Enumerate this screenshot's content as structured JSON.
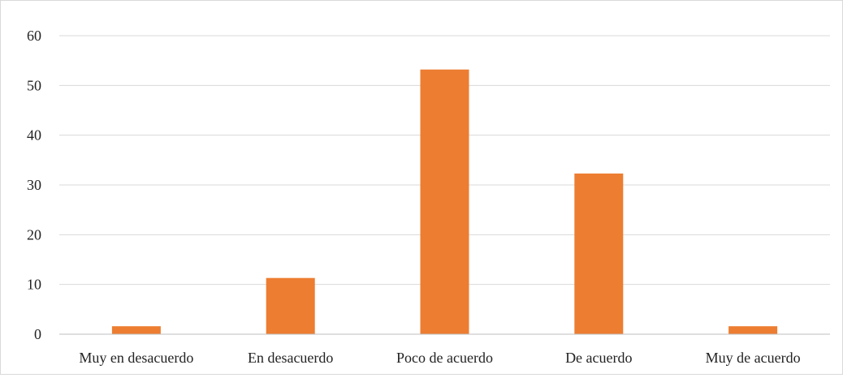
{
  "chart_data": {
    "type": "bar",
    "categories": [
      "Muy en desacuerdo",
      "En desacuerdo",
      "Poco de acuerdo",
      "De acuerdo",
      "Muy de acuerdo"
    ],
    "values": [
      1.6,
      11.3,
      53.2,
      32.3,
      1.6
    ],
    "title": "",
    "xlabel": "",
    "ylabel": "",
    "ylim": [
      0,
      60
    ],
    "yticks": [
      0,
      10,
      20,
      30,
      40,
      50,
      60
    ],
    "grid": true,
    "legend": "none",
    "colors": {
      "bar": "#ED7D31",
      "gridline": "#D9D9D9",
      "axis": "#BFBFBF",
      "text": "#222222"
    }
  }
}
